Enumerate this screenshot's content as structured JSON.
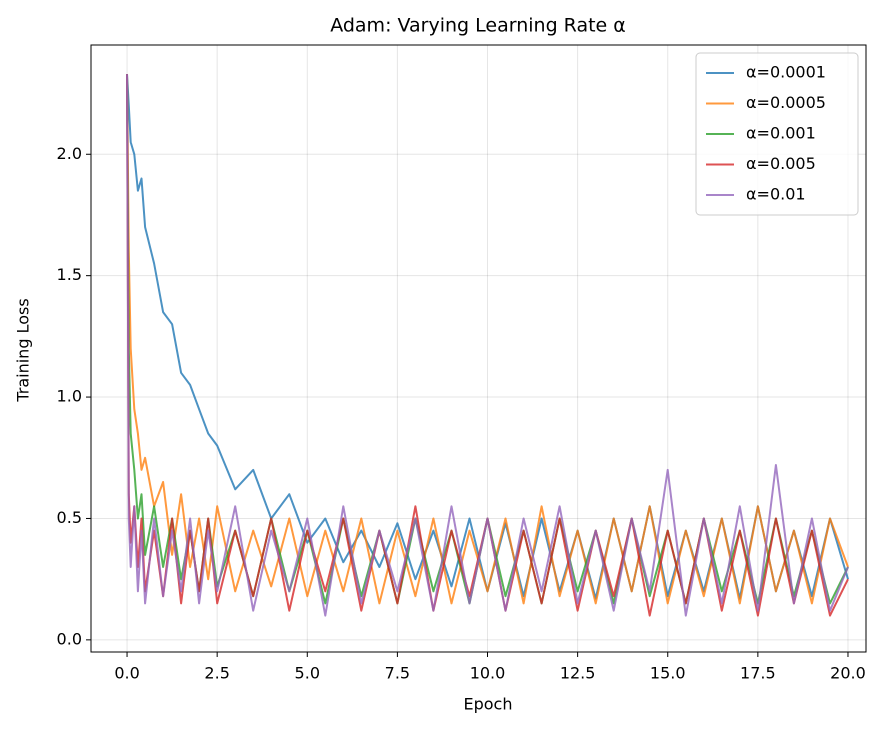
{
  "chart_data": {
    "type": "line",
    "title": "Adam: Varying Learning Rate α",
    "x_label": "Epoch",
    "y_label": "Training Loss",
    "x": [
      0,
      0.05,
      0.1,
      0.2,
      0.3,
      0.4,
      0.5,
      0.75,
      1,
      1.25,
      1.5,
      1.75,
      2,
      2.25,
      2.5,
      3,
      3.5,
      4,
      4.5,
      5,
      5.5,
      6,
      6.5,
      7,
      7.5,
      8,
      8.5,
      9,
      9.5,
      10,
      10.5,
      11,
      11.5,
      12,
      12.5,
      13,
      13.5,
      14,
      14.5,
      15,
      15.5,
      16,
      16.5,
      17,
      17.5,
      18,
      18.5,
      19,
      19.5,
      20
    ],
    "series": [
      {
        "name": "α=0.0001",
        "color": "#1f77b4",
        "values": [
          2.33,
          2.2,
          2.05,
          2.0,
          1.85,
          1.9,
          1.7,
          1.55,
          1.35,
          1.3,
          1.1,
          1.05,
          0.95,
          0.85,
          0.8,
          0.62,
          0.7,
          0.5,
          0.6,
          0.4,
          0.5,
          0.32,
          0.45,
          0.3,
          0.48,
          0.25,
          0.45,
          0.22,
          0.5,
          0.2,
          0.48,
          0.18,
          0.5,
          0.2,
          0.45,
          0.17,
          0.5,
          0.2,
          0.55,
          0.18,
          0.45,
          0.2,
          0.5,
          0.17,
          0.55,
          0.2,
          0.45,
          0.18,
          0.5,
          0.25
        ]
      },
      {
        "name": "α=0.0005",
        "color": "#ff7f0e",
        "values": [
          2.33,
          1.6,
          1.2,
          0.95,
          0.85,
          0.7,
          0.75,
          0.55,
          0.65,
          0.35,
          0.6,
          0.3,
          0.5,
          0.25,
          0.55,
          0.2,
          0.45,
          0.22,
          0.5,
          0.18,
          0.45,
          0.2,
          0.5,
          0.15,
          0.45,
          0.18,
          0.5,
          0.15,
          0.45,
          0.2,
          0.5,
          0.15,
          0.55,
          0.18,
          0.45,
          0.15,
          0.5,
          0.2,
          0.55,
          0.15,
          0.45,
          0.18,
          0.5,
          0.15,
          0.55,
          0.2,
          0.45,
          0.15,
          0.5,
          0.3
        ]
      },
      {
        "name": "α=0.001",
        "color": "#2ca02c",
        "values": [
          2.33,
          1.2,
          0.85,
          0.7,
          0.5,
          0.6,
          0.35,
          0.55,
          0.3,
          0.5,
          0.25,
          0.45,
          0.2,
          0.5,
          0.22,
          0.45,
          0.18,
          0.5,
          0.2,
          0.45,
          0.15,
          0.5,
          0.18,
          0.45,
          0.15,
          0.5,
          0.2,
          0.45,
          0.15,
          0.5,
          0.18,
          0.45,
          0.15,
          0.5,
          0.2,
          0.45,
          0.15,
          0.5,
          0.18,
          0.45,
          0.15,
          0.5,
          0.2,
          0.45,
          0.15,
          0.5,
          0.18,
          0.45,
          0.15,
          0.3
        ]
      },
      {
        "name": "α=0.005",
        "color": "#d62728",
        "values": [
          2.33,
          0.6,
          0.4,
          0.55,
          0.3,
          0.5,
          0.2,
          0.45,
          0.18,
          0.5,
          0.15,
          0.45,
          0.2,
          0.5,
          0.15,
          0.45,
          0.18,
          0.5,
          0.12,
          0.45,
          0.2,
          0.5,
          0.12,
          0.45,
          0.15,
          0.55,
          0.12,
          0.45,
          0.18,
          0.5,
          0.12,
          0.45,
          0.15,
          0.5,
          0.12,
          0.45,
          0.18,
          0.5,
          0.1,
          0.45,
          0.15,
          0.5,
          0.12,
          0.45,
          0.1,
          0.5,
          0.15,
          0.45,
          0.1,
          0.25
        ]
      },
      {
        "name": "α=0.01",
        "color": "#9467bd",
        "values": [
          2.33,
          0.5,
          0.3,
          0.55,
          0.2,
          0.45,
          0.15,
          0.5,
          0.18,
          0.45,
          0.2,
          0.5,
          0.15,
          0.45,
          0.2,
          0.55,
          0.12,
          0.45,
          0.2,
          0.5,
          0.1,
          0.55,
          0.15,
          0.45,
          0.2,
          0.5,
          0.12,
          0.55,
          0.15,
          0.5,
          0.12,
          0.5,
          0.2,
          0.55,
          0.15,
          0.45,
          0.12,
          0.5,
          0.2,
          0.7,
          0.1,
          0.5,
          0.15,
          0.55,
          0.12,
          0.72,
          0.15,
          0.5,
          0.12,
          0.3
        ]
      }
    ],
    "xlim": [
      -1,
      20.5
    ],
    "ylim": [
      -0.05,
      2.45
    ],
    "xticks": [
      {
        "value": 0,
        "label": "0.0"
      },
      {
        "value": 2.5,
        "label": "2.5"
      },
      {
        "value": 5,
        "label": "5.0"
      },
      {
        "value": 7.5,
        "label": "7.5"
      },
      {
        "value": 10,
        "label": "10.0"
      },
      {
        "value": 12.5,
        "label": "12.5"
      },
      {
        "value": 15,
        "label": "15.0"
      },
      {
        "value": 17.5,
        "label": "17.5"
      },
      {
        "value": 20,
        "label": "20.0"
      }
    ],
    "yticks": [
      {
        "value": 0,
        "label": "0.0"
      },
      {
        "value": 0.5,
        "label": "0.5"
      },
      {
        "value": 1,
        "label": "1.0"
      },
      {
        "value": 1.5,
        "label": "1.5"
      },
      {
        "value": 2,
        "label": "2.0"
      }
    ],
    "grid": true,
    "legend": "upper right"
  }
}
